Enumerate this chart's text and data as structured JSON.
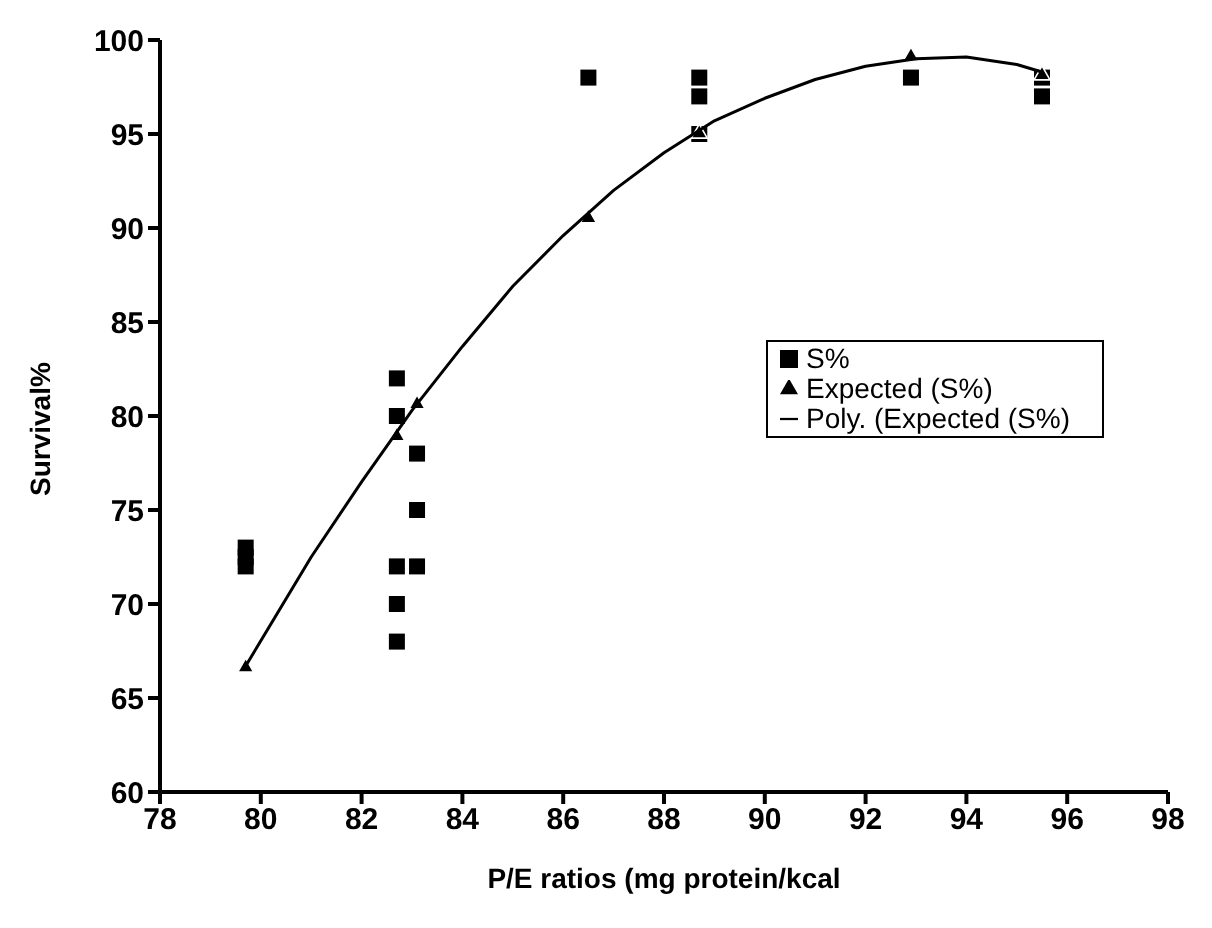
{
  "chart_data": {
    "type": "scatter",
    "xlabel": "P/E ratios (mg protein/kcal",
    "ylabel": "Survival%",
    "xlim": [
      78,
      98
    ],
    "xticks": [
      78,
      80,
      82,
      84,
      86,
      88,
      90,
      92,
      94,
      96,
      98
    ],
    "ylim": [
      60,
      100
    ],
    "yticks": [
      60,
      65,
      70,
      75,
      80,
      85,
      90,
      95,
      100
    ],
    "grid": false,
    "legend": "right",
    "series": [
      {
        "name": "S%",
        "type": "scatter",
        "marker": "square",
        "color": "#000000",
        "x": [
          79.7,
          79.7,
          79.7,
          82.7,
          82.7,
          82.7,
          82.7,
          82.7,
          83.1,
          83.1,
          83.1,
          86.5,
          88.7,
          88.7,
          88.7,
          92.9,
          95.5,
          95.5
        ],
        "values": [
          73,
          72.5,
          72,
          82,
          80,
          72,
          70,
          68,
          78,
          75,
          72,
          98,
          98,
          97,
          95,
          98,
          98,
          97
        ]
      },
      {
        "name": "Expected (S%)",
        "type": "scatter",
        "marker": "triangle",
        "color": "#000000",
        "x": [
          79.7,
          82.7,
          83.1,
          86.5,
          88.7,
          92.9,
          95.5
        ],
        "values": [
          66.7,
          79,
          80.7,
          90.6,
          95.1,
          99.2,
          98.2
        ]
      },
      {
        "name": "Poly. (Expected (S%)",
        "type": "line",
        "marker": "none",
        "color": "#000000",
        "x": [
          79.7,
          81,
          82,
          83,
          84,
          85,
          86,
          87,
          88,
          89,
          90,
          91,
          92,
          93,
          94,
          95,
          95.5
        ],
        "values": [
          66.7,
          72.5,
          76.5,
          80.3,
          83.7,
          86.9,
          89.6,
          92,
          94,
          95.7,
          96.9,
          97.9,
          98.6,
          99,
          99.1,
          98.7,
          98.3
        ]
      }
    ]
  }
}
